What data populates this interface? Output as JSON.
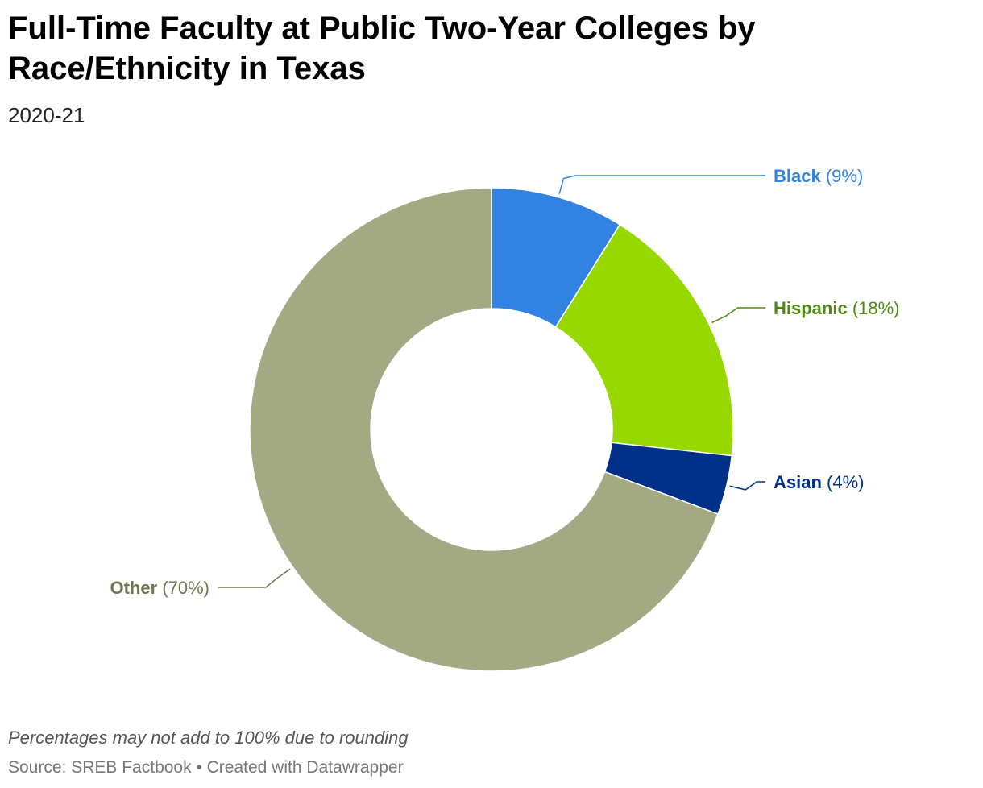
{
  "header": {
    "title": "Full-Time Faculty at Public Two-Year Colleges by Race/Ethnicity in Texas",
    "subtitle": "2020-21"
  },
  "footer": {
    "note": "Percentages may not add to 100% due to rounding",
    "source": "Source: SREB Factbook • Created with Datawrapper"
  },
  "chart_data": {
    "type": "pie",
    "variant": "donut",
    "slices": [
      {
        "label": "Black",
        "value": 9,
        "value_label": "(9%)",
        "color": "#3182e1",
        "text_color": "#3182e1"
      },
      {
        "label": "Hispanic",
        "value": 18,
        "value_label": "(18%)",
        "color": "#96d800",
        "text_color": "#4f8a10"
      },
      {
        "label": "Asian",
        "value": 4,
        "value_label": "(4%)",
        "color": "#003087",
        "text_color": "#003087"
      },
      {
        "label": "Other",
        "value": 70,
        "value_label": "(70%)",
        "color": "#a3a983",
        "text_color": "#6f7551"
      }
    ]
  }
}
